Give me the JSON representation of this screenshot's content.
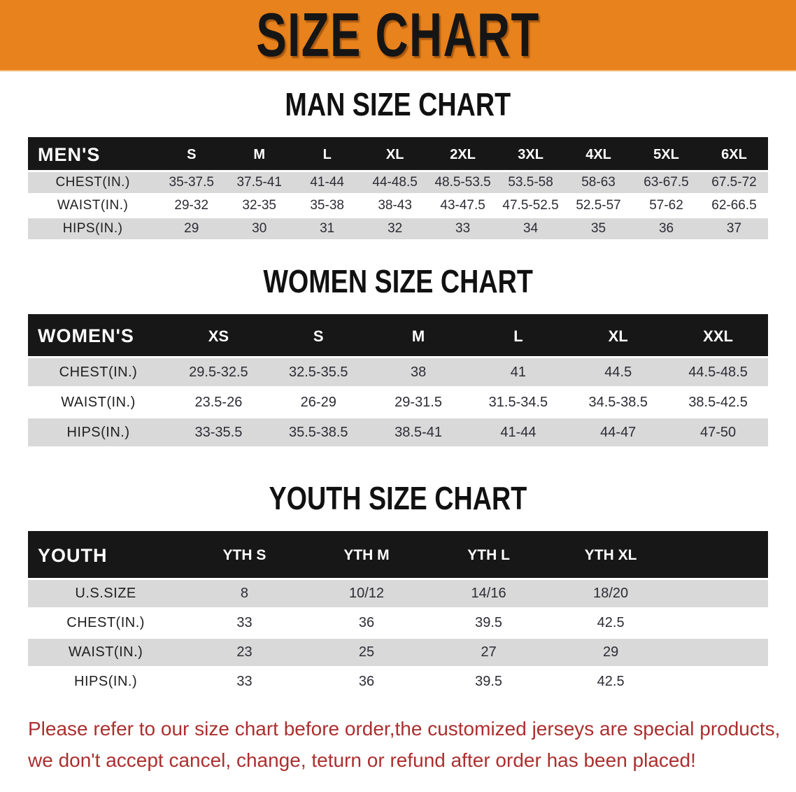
{
  "title": "SIZE CHART",
  "colors": {
    "banner_orange": "#e8821c",
    "bar_black": "#171717",
    "row_gray": "#d9d9d9",
    "disclaimer_red": "#ac2f2f"
  },
  "tables": [
    {
      "heading": "MAN SIZE CHART",
      "label": "MEN'S",
      "columns": [
        "S",
        "M",
        "L",
        "XL",
        "2XL",
        "3XL",
        "4XL",
        "5XL",
        "6XL"
      ],
      "rows": [
        {
          "label": "CHEST(IN.)",
          "values": [
            "35-37.5",
            "37.5-41",
            "41-44",
            "44-48.5",
            "48.5-53.5",
            "53.5-58",
            "58-63",
            "63-67.5",
            "67.5-72"
          ]
        },
        {
          "label": "WAIST(IN.)",
          "values": [
            "29-32",
            "32-35",
            "35-38",
            "38-43",
            "43-47.5",
            "47.5-52.5",
            "52.5-57",
            "57-62",
            "62-66.5"
          ]
        },
        {
          "label": "HIPS(IN.)",
          "values": [
            "29",
            "30",
            "31",
            "32",
            "33",
            "34",
            "35",
            "36",
            "37"
          ]
        }
      ]
    },
    {
      "heading": "WOMEN SIZE CHART",
      "label": "WOMEN'S",
      "columns": [
        "XS",
        "S",
        "M",
        "L",
        "XL",
        "XXL"
      ],
      "rows": [
        {
          "label": "CHEST(IN.)",
          "values": [
            "29.5-32.5",
            "32.5-35.5",
            "38",
            "41",
            "44.5",
            "44.5-48.5"
          ]
        },
        {
          "label": "WAIST(IN.)",
          "values": [
            "23.5-26",
            "26-29",
            "29-31.5",
            "31.5-34.5",
            "34.5-38.5",
            "38.5-42.5"
          ]
        },
        {
          "label": "HIPS(IN.)",
          "values": [
            "33-35.5",
            "35.5-38.5",
            "38.5-41",
            "41-44",
            "44-47",
            "47-50"
          ]
        }
      ]
    },
    {
      "heading": "YOUTH SIZE CHART",
      "label": "YOUTH",
      "columns": [
        "YTH S",
        "YTH M",
        "YTH L",
        "YTH XL"
      ],
      "rows": [
        {
          "label": "U.S.SIZE",
          "values": [
            "8",
            "10/12",
            "14/16",
            "18/20"
          ]
        },
        {
          "label": "CHEST(IN.)",
          "values": [
            "33",
            "36",
            "39.5",
            "42.5"
          ]
        },
        {
          "label": "WAIST(IN.)",
          "values": [
            "23",
            "25",
            "27",
            "29"
          ]
        },
        {
          "label": "HIPS(IN.)",
          "values": [
            "33",
            "36",
            "39.5",
            "42.5"
          ]
        }
      ]
    }
  ],
  "disclaimer": {
    "line1": "Please refer to our size chart before order,the customized jerseys are special products,",
    "line2": "we don't accept cancel, change, teturn or refund after order has been placed!"
  }
}
